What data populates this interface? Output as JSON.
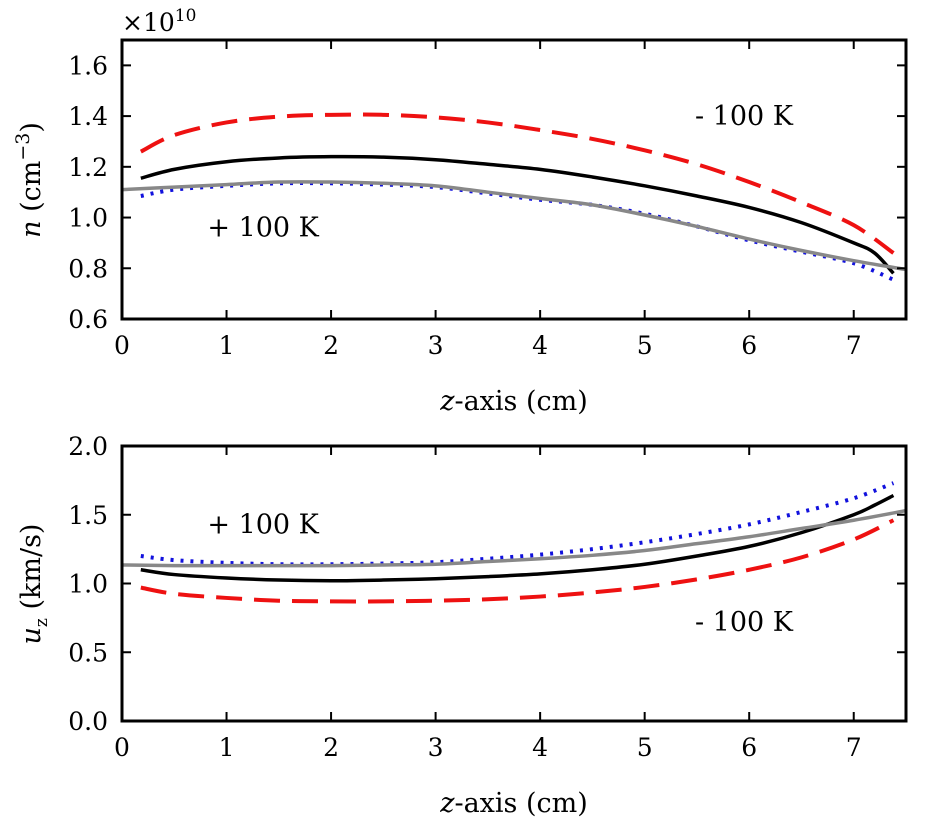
{
  "chart_data": [
    {
      "type": "line",
      "ylabel_var": "n",
      "ylabel_unit": "(cm",
      "ylabel_exp": "−3",
      "ylabel_close": ")",
      "xlabel_var": "z",
      "xlabel_rest": "-axis (cm)",
      "offset_text": "×10",
      "offset_exp": "10",
      "xlim": [
        0,
        7.5
      ],
      "ylim": [
        0.6,
        1.7
      ],
      "xticks": [
        0,
        1,
        2,
        3,
        4,
        5,
        6,
        7
      ],
      "yticks": [
        0.6,
        0.8,
        1.0,
        1.2,
        1.4,
        1.6
      ],
      "yticks_format": 1,
      "annotations": [
        {
          "text": "- 100 K",
          "x": 5.95,
          "y": 1.4
        },
        {
          "text": "+ 100 K",
          "x": 1.35,
          "y": 0.96
        }
      ],
      "series": [
        {
          "name": "baseline",
          "color": "#000000",
          "style": "solid",
          "width": 3.5,
          "x": [
            0.18,
            0.5,
            1.0,
            1.5,
            2.0,
            2.5,
            3.0,
            3.5,
            4.0,
            4.5,
            5.0,
            5.5,
            6.0,
            6.5,
            7.0,
            7.2,
            7.38
          ],
          "y": [
            1.155,
            1.19,
            1.22,
            1.235,
            1.24,
            1.238,
            1.228,
            1.21,
            1.19,
            1.16,
            1.125,
            1.085,
            1.04,
            0.98,
            0.9,
            0.86,
            0.78
          ]
        },
        {
          "name": "minus-100K",
          "color": "#ee1111",
          "style": "dashed",
          "width": 4,
          "x": [
            0.18,
            0.5,
            1.0,
            1.5,
            2.0,
            2.5,
            3.0,
            3.5,
            4.0,
            4.5,
            5.0,
            5.5,
            6.0,
            6.5,
            7.0,
            7.38
          ],
          "y": [
            1.26,
            1.325,
            1.375,
            1.398,
            1.405,
            1.405,
            1.395,
            1.375,
            1.345,
            1.31,
            1.265,
            1.21,
            1.14,
            1.06,
            0.97,
            0.86
          ]
        },
        {
          "name": "plus-100K",
          "color": "#1111dd",
          "style": "dotted",
          "width": 4,
          "x": [
            0.18,
            0.5,
            1.0,
            1.5,
            2.0,
            2.5,
            3.0,
            3.5,
            4.0,
            4.5,
            5.0,
            5.5,
            6.0,
            6.5,
            7.0,
            7.38
          ],
          "y": [
            1.085,
            1.11,
            1.125,
            1.135,
            1.135,
            1.13,
            1.12,
            1.095,
            1.07,
            1.05,
            1.015,
            0.965,
            0.91,
            0.865,
            0.82,
            0.755
          ]
        },
        {
          "name": "reference",
          "color": "#888888",
          "style": "solid",
          "width": 3.5,
          "x": [
            0.0,
            0.5,
            1.0,
            1.5,
            2.0,
            2.5,
            3.0,
            3.5,
            4.0,
            4.5,
            5.0,
            5.5,
            6.0,
            6.5,
            7.0,
            7.5
          ],
          "y": [
            1.11,
            1.12,
            1.13,
            1.14,
            1.14,
            1.135,
            1.125,
            1.1,
            1.075,
            1.05,
            1.01,
            0.965,
            0.915,
            0.87,
            0.83,
            0.795
          ]
        }
      ]
    },
    {
      "type": "line",
      "ylabel_var": "u",
      "ylabel_sub": "z",
      "ylabel_unit": "(km/s)",
      "xlabel_var": "z",
      "xlabel_rest": "-axis (cm)",
      "xlim": [
        0,
        7.5
      ],
      "ylim": [
        0.0,
        2.0
      ],
      "xticks": [
        0,
        1,
        2,
        3,
        4,
        5,
        6,
        7
      ],
      "yticks": [
        0.0,
        0.5,
        1.0,
        1.5,
        2.0
      ],
      "yticks_format": 1,
      "annotations": [
        {
          "text": "+ 100 K",
          "x": 1.35,
          "y": 1.43
        },
        {
          "text": "- 100 K",
          "x": 5.95,
          "y": 0.72
        }
      ],
      "series": [
        {
          "name": "baseline",
          "color": "#000000",
          "style": "solid",
          "width": 3.5,
          "x": [
            0.18,
            0.5,
            1.0,
            1.5,
            2.0,
            2.5,
            3.0,
            3.5,
            4.0,
            4.5,
            5.0,
            5.5,
            6.0,
            6.5,
            7.0,
            7.2,
            7.38
          ],
          "y": [
            1.1,
            1.065,
            1.04,
            1.025,
            1.02,
            1.025,
            1.035,
            1.05,
            1.07,
            1.1,
            1.14,
            1.2,
            1.27,
            1.37,
            1.5,
            1.57,
            1.64
          ]
        },
        {
          "name": "minus-100K",
          "color": "#ee1111",
          "style": "dashed",
          "width": 4,
          "x": [
            0.18,
            0.5,
            1.0,
            1.5,
            2.0,
            2.5,
            3.0,
            3.5,
            4.0,
            4.5,
            5.0,
            5.5,
            6.0,
            6.5,
            7.0,
            7.38
          ],
          "y": [
            0.97,
            0.925,
            0.895,
            0.875,
            0.87,
            0.87,
            0.875,
            0.885,
            0.905,
            0.935,
            0.975,
            1.03,
            1.1,
            1.19,
            1.32,
            1.46
          ]
        },
        {
          "name": "plus-100K",
          "color": "#1111dd",
          "style": "dotted",
          "width": 4,
          "x": [
            0.18,
            0.5,
            1.0,
            1.5,
            2.0,
            2.5,
            3.0,
            3.5,
            4.0,
            4.5,
            5.0,
            5.5,
            6.0,
            6.5,
            7.0,
            7.38
          ],
          "y": [
            1.2,
            1.17,
            1.15,
            1.14,
            1.14,
            1.145,
            1.155,
            1.18,
            1.21,
            1.25,
            1.3,
            1.36,
            1.43,
            1.52,
            1.62,
            1.73
          ]
        },
        {
          "name": "reference",
          "color": "#888888",
          "style": "solid",
          "width": 3.5,
          "x": [
            0.0,
            0.5,
            1.0,
            1.5,
            2.0,
            2.5,
            3.0,
            3.5,
            4.0,
            4.5,
            5.0,
            5.5,
            6.0,
            6.5,
            7.0,
            7.5
          ],
          "y": [
            1.135,
            1.13,
            1.13,
            1.13,
            1.13,
            1.135,
            1.14,
            1.16,
            1.18,
            1.205,
            1.24,
            1.29,
            1.34,
            1.4,
            1.46,
            1.53
          ]
        }
      ]
    }
  ]
}
